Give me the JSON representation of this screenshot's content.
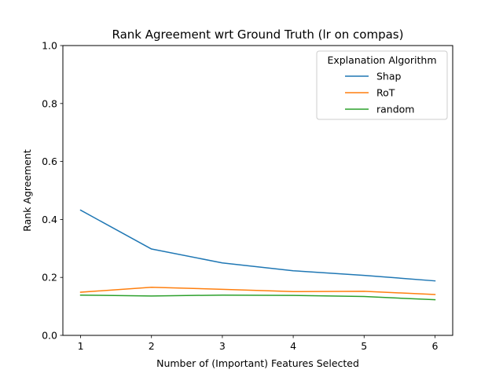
{
  "chart_data": {
    "type": "line",
    "title": "Rank Agreement wrt Ground Truth (lr on compas)",
    "xlabel": "Number of (Important) Features Selected",
    "ylabel": "Rank Agreement",
    "x": [
      1,
      2,
      3,
      4,
      5,
      6
    ],
    "xticks": [
      "1",
      "2",
      "3",
      "4",
      "5",
      "6"
    ],
    "xlim": [
      0.75,
      6.25
    ],
    "ylim": [
      0.0,
      1.0
    ],
    "yticks": [
      "0.0",
      "0.2",
      "0.4",
      "0.6",
      "0.8",
      "1.0"
    ],
    "grid": false,
    "legend": {
      "title": "Explanation Algorithm",
      "placement": "top-right"
    },
    "series": [
      {
        "name": "Shap",
        "color": "#1f77b4",
        "values": [
          0.432,
          0.298,
          0.25,
          0.223,
          0.207,
          0.188
        ]
      },
      {
        "name": "RoT",
        "color": "#ff7f0e",
        "values": [
          0.149,
          0.166,
          0.159,
          0.151,
          0.152,
          0.141
        ]
      },
      {
        "name": "random",
        "color": "#2ca02c",
        "values": [
          0.139,
          0.136,
          0.139,
          0.138,
          0.134,
          0.123
        ]
      }
    ]
  }
}
